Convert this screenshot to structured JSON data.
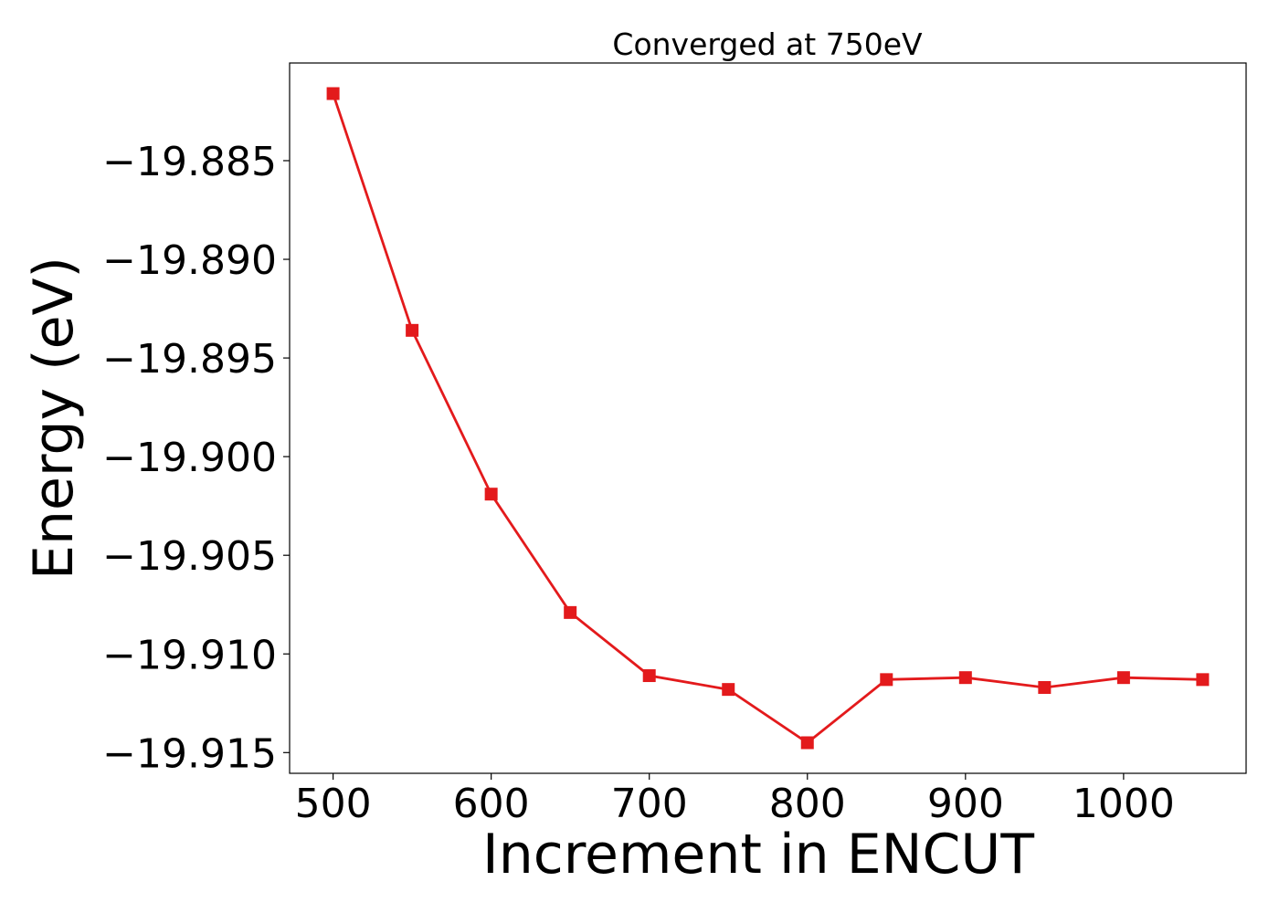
{
  "chart_data": {
    "type": "line",
    "title": "Converged at 750eV",
    "xlabel": "Increment in ENCUT",
    "ylabel": "Energy (eV)",
    "x": [
      500,
      550,
      600,
      650,
      700,
      750,
      800,
      850,
      900,
      950,
      1000,
      1050
    ],
    "series": [
      {
        "values": [
          -19.8816,
          -19.8936,
          -19.9019,
          -19.9079,
          -19.9111,
          -19.9118,
          -19.9145,
          -19.9113,
          -19.9112,
          -19.9117,
          -19.9112,
          -19.9113
        ]
      }
    ],
    "xlim": [
      472.5,
      1077.5
    ],
    "ylim": [
      -19.91605,
      -19.88005
    ],
    "xticks": [
      500,
      600,
      700,
      800,
      900,
      1000
    ],
    "xtick_labels": [
      "500",
      "600",
      "700",
      "800",
      "900",
      "1000"
    ],
    "yticks": [
      -19.885,
      -19.89,
      -19.895,
      -19.9,
      -19.905,
      -19.91,
      -19.915
    ],
    "ytick_labels": [
      "−19.885",
      "−19.890",
      "−19.895",
      "−19.900",
      "−19.905",
      "−19.910",
      "−19.915"
    ],
    "grid": false,
    "marker": "square",
    "line_color": "#e31a1c"
  }
}
